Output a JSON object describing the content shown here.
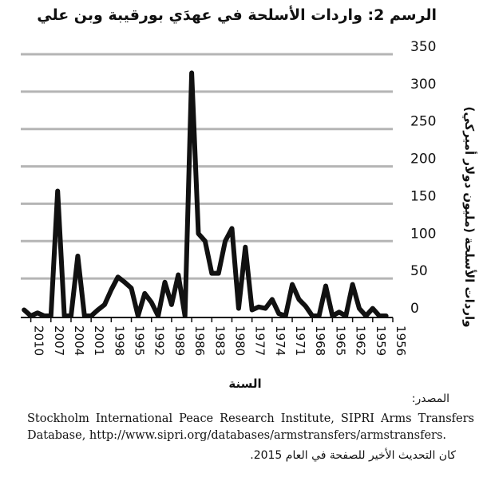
{
  "chart_data": {
    "type": "line",
    "title": "الرسم 2: واردات الأسلحة في عهدَي بورقيبة وبن علي",
    "xlabel": "السنة",
    "ylabel": "واردات الأسلحة (مليون دولار أميركي)",
    "ylim": [
      0,
      350
    ],
    "yticks": [
      0,
      50,
      100,
      150,
      200,
      250,
      300,
      350
    ],
    "xticks": [
      2010,
      2007,
      2004,
      2001,
      1998,
      1995,
      1992,
      1989,
      1986,
      1983,
      1980,
      1977,
      1974,
      1971,
      1968,
      1965,
      1962,
      1959,
      1956
    ],
    "x_reversed": true,
    "grid": true,
    "series": [
      {
        "x": [
          2011,
          2010,
          2009,
          2008,
          2007,
          2006,
          2005,
          2004,
          2003,
          2002,
          2001,
          2000,
          1999,
          1998,
          1997,
          1996,
          1995,
          1994,
          1993,
          1992,
          1991,
          1990,
          1989,
          1988,
          1987,
          1986,
          1985,
          1984,
          1983,
          1982,
          1981,
          1980,
          1979,
          1978,
          1977,
          1976,
          1975,
          1974,
          1973,
          1972,
          1971,
          1970,
          1969,
          1968,
          1967,
          1966,
          1965,
          1964,
          1963,
          1962,
          1961,
          1960,
          1959,
          1958,
          1957
        ],
        "y": [
          8,
          0,
          4,
          0,
          0,
          167,
          0,
          0,
          80,
          0,
          0,
          8,
          15,
          35,
          52,
          45,
          37,
          0,
          30,
          18,
          0,
          45,
          15,
          55,
          0,
          325,
          110,
          100,
          57,
          57,
          100,
          117,
          10,
          92,
          8,
          12,
          10,
          22,
          3,
          0,
          42,
          22,
          13,
          0,
          0,
          40,
          0,
          5,
          0,
          42,
          10,
          0,
          10,
          0,
          0
        ]
      }
    ]
  },
  "source": {
    "label": "المصدر:",
    "text": "Stockholm International Peace Research Institute, SIPRI Arms Transfers Database, http://www.sipri.org/databases/armstransfers/armstransfers.",
    "note": "كان التحديث الأخير للصفحة في العام 2015."
  }
}
